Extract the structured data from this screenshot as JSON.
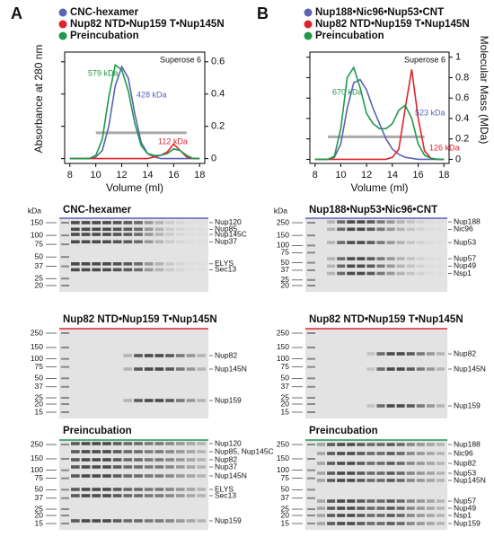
{
  "panel_labels": [
    "A",
    "B"
  ],
  "chart_data": [
    {
      "type": "line",
      "xlabel": "Volume (ml)",
      "ylabel": "Absorbance at 280 nm",
      "annotation": "Superose 6",
      "x": [
        8,
        8.5,
        9,
        9.5,
        10,
        10.5,
        11,
        11.5,
        12,
        12.5,
        13,
        13.5,
        14,
        14.5,
        15,
        15.5,
        16,
        16.5,
        17,
        17.5,
        18
      ],
      "xlim": [
        7.6,
        18.4
      ],
      "xticks": [
        8,
        10,
        12,
        14,
        16,
        18
      ],
      "ylim": [
        -0.03,
        0.66
      ],
      "yticks": [
        0,
        0.2,
        0.4,
        0.6
      ],
      "series": [
        {
          "name": "CNC-hexamer",
          "color": "#5b63b5",
          "values": [
            0,
            0,
            0,
            0,
            0.01,
            0.05,
            0.2,
            0.45,
            0.57,
            0.5,
            0.28,
            0.1,
            0.03,
            0.01,
            0,
            0,
            0,
            0,
            0,
            0,
            0
          ]
        },
        {
          "name": "Nup82 NTD•Nup159 T•Nup145N",
          "color": "#e0232a",
          "values": [
            0,
            0,
            0,
            0,
            0,
            0,
            0,
            0,
            0,
            0,
            0,
            0,
            0,
            0.01,
            0.02,
            0.04,
            0.09,
            0.05,
            0.01,
            0,
            0
          ]
        },
        {
          "name": "Preincubation",
          "color": "#1e9a4a",
          "values": [
            0,
            0,
            0,
            0,
            0.02,
            0.12,
            0.38,
            0.58,
            0.55,
            0.42,
            0.22,
            0.08,
            0.03,
            0.02,
            0.02,
            0.03,
            0.06,
            0.05,
            0.02,
            0,
            0
          ]
        }
      ],
      "reference_line": {
        "x": [
          10,
          17
        ],
        "y": [
          0.16,
          0.16
        ],
        "color": "#aaaaaa"
      },
      "peak_labels": [
        {
          "text": "579 kDa",
          "color": "#1e9a4a"
        },
        {
          "text": "428 kDa",
          "color": "#5b63b5"
        },
        {
          "text": "112 kDa",
          "color": "#e0232a"
        }
      ]
    },
    {
      "type": "line",
      "xlabel": "Volume (ml)",
      "y2label": "Molecular Mass (MDa)",
      "annotation": "Superose 6",
      "x": [
        8,
        8.5,
        9,
        9.5,
        10,
        10.5,
        11,
        11.5,
        12,
        12.5,
        13,
        13.5,
        14,
        14.5,
        15,
        15.5,
        16,
        16.5,
        17,
        17.5,
        18
      ],
      "xlim": [
        7.6,
        18.4
      ],
      "xticks": [
        8,
        10,
        12,
        14,
        16,
        18
      ],
      "ylim": [
        -0.04,
        1.05
      ],
      "yticks": [
        0,
        0.2,
        0.4,
        0.6,
        0.8,
        1.0
      ],
      "series": [
        {
          "name": "Nup188•Nic96•Nup53•CNT",
          "color": "#5b63b5",
          "values": [
            0,
            0,
            0,
            0.02,
            0.15,
            0.5,
            0.75,
            0.78,
            0.68,
            0.5,
            0.35,
            0.2,
            0.1,
            0.05,
            0.02,
            0.01,
            0,
            0,
            0,
            0,
            0
          ]
        },
        {
          "name": "Nup82 NTD•Nup159 T•Nup145N",
          "color": "#e0232a",
          "values": [
            0,
            0,
            0,
            0,
            0,
            0,
            0,
            0,
            0,
            0,
            0,
            0,
            0.02,
            0.1,
            0.5,
            0.88,
            0.4,
            0.08,
            0.01,
            0,
            0
          ]
        },
        {
          "name": "Preincubation",
          "color": "#1e9a4a",
          "values": [
            0,
            0,
            0,
            0.03,
            0.3,
            0.8,
            0.9,
            0.7,
            0.45,
            0.35,
            0.3,
            0.3,
            0.35,
            0.48,
            0.53,
            0.4,
            0.15,
            0.04,
            0.01,
            0,
            0
          ]
        }
      ],
      "reference_line": {
        "x": [
          9,
          16.5
        ],
        "y": [
          0.22,
          0.22
        ],
        "color": "#aaaaaa"
      },
      "peak_labels": [
        {
          "text": "670 kDa",
          "color": "#1e9a4a"
        },
        {
          "text": "523 kDa",
          "color": "#5b63b5"
        },
        {
          "text": "126 kDa",
          "color": "#e0232a"
        }
      ]
    }
  ],
  "gels": [
    {
      "title": "CNC-hexamer",
      "color": "#5b63b5",
      "unit": "kDa",
      "markers": [
        150,
        100,
        75,
        50,
        37,
        25,
        20
      ],
      "bands": [
        "Nup120",
        "Nup85",
        "Nup145C",
        "Nup37",
        "ELYS",
        "Sec13"
      ]
    },
    {
      "title": "Nup82 NTD•Nup159 T•Nup145N",
      "color": "#e0232a",
      "markers": [
        250,
        150,
        100,
        75,
        50,
        37,
        25,
        20,
        15
      ],
      "bands": [
        "Nup82",
        "Nup145N",
        "Nup159"
      ]
    },
    {
      "title": "Preincubation",
      "color": "#1e9a4a",
      "markers": [
        250,
        150,
        100,
        75,
        50,
        37,
        25,
        20,
        15
      ],
      "bands": [
        "Nup120",
        "Nup85, Nup145C",
        "Nup82",
        "Nup37",
        "Nup145N",
        "ELYS",
        "Sec13",
        "Nup159"
      ]
    },
    {
      "title": "Nup188•Nup53•Nic96•CNT",
      "color": "#5b63b5",
      "unit": "kDa",
      "markers": [
        250,
        150,
        100,
        75,
        50,
        37,
        25,
        20
      ],
      "bands": [
        "Nup188",
        "Nic96",
        "Nup53",
        "Nup57",
        "Nup49",
        "Nsp1"
      ]
    },
    {
      "title": "Nup82 NTD•Nup159 T•Nup145N",
      "color": "#e0232a",
      "markers": [
        250,
        150,
        100,
        75,
        50,
        37,
        25,
        20,
        15
      ],
      "bands": [
        "Nup82",
        "Nup145N",
        "Nup159"
      ]
    },
    {
      "title": "Preincubation",
      "color": "#1e9a4a",
      "markers": [
        250,
        150,
        100,
        75,
        50,
        37,
        25,
        20,
        15
      ],
      "bands": [
        "Nup188",
        "Nic96",
        "Nup82",
        "Nup53",
        "Nup145N",
        "Nup57",
        "Nup49",
        "Nsp1",
        "Nup159"
      ]
    }
  ]
}
